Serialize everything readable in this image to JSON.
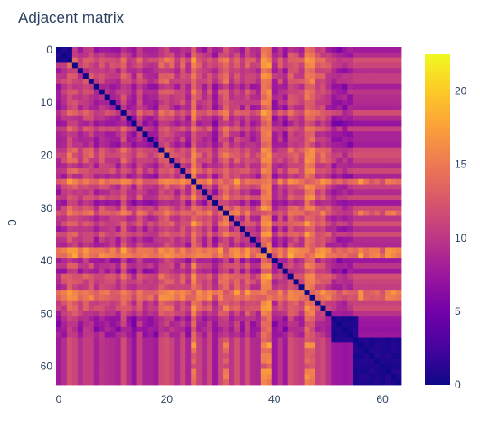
{
  "chart_data": {
    "type": "heatmap",
    "title": "Adjacent matrix",
    "ylabel": "0",
    "xlabel": "",
    "n": 64,
    "x_ticks": [
      0,
      20,
      40,
      60
    ],
    "y_ticks": [
      0,
      10,
      20,
      30,
      40,
      50,
      60
    ],
    "y_reversed": true,
    "colorscale": "plasma",
    "zmin": 0,
    "zmax": 22.5,
    "colorbar_ticks": [
      0,
      5,
      10,
      15,
      20
    ],
    "colorscale_stops": [
      "#0d0887",
      "#46039f",
      "#7201a8",
      "#9c179e",
      "#bd3786",
      "#d8576b",
      "#ed7953",
      "#fb9f3a",
      "#fdca26",
      "#f0f921"
    ],
    "cluster_blocks": [
      {
        "rows": [
          0,
          2
        ],
        "note": "small near-zero block"
      },
      {
        "rows": [
          51,
          55
        ],
        "note": "near-zero block"
      },
      {
        "rows": [
          55,
          63
        ],
        "note": "near-zero block"
      }
    ],
    "bright_rows_cols": [
      25,
      31,
      38,
      39,
      46,
      47
    ],
    "diagonal": 0,
    "symmetric": true
  }
}
